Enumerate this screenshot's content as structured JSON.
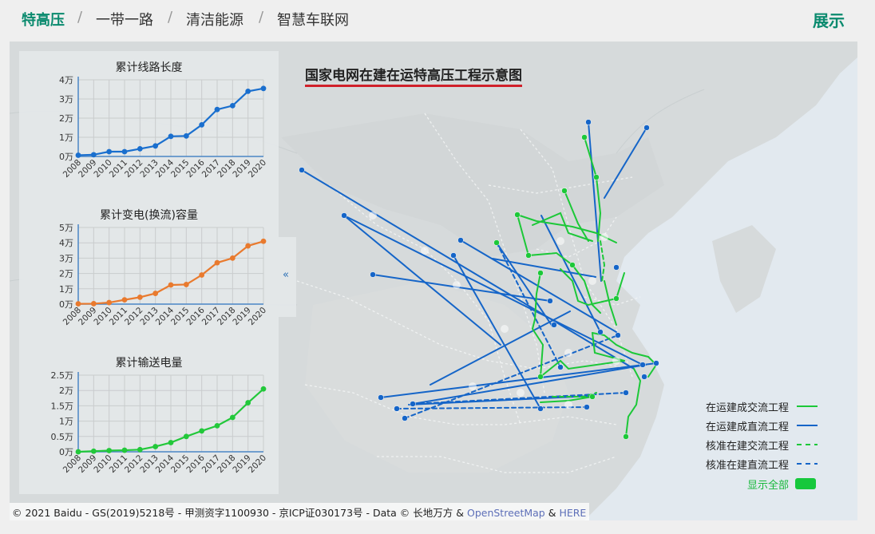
{
  "nav": {
    "tabs": [
      {
        "label": "特高压",
        "active": true
      },
      {
        "label": "一带一路",
        "active": false
      },
      {
        "label": "清洁能源",
        "active": false
      },
      {
        "label": "智慧车联网",
        "active": false
      }
    ],
    "separator": "/",
    "brand": "展示"
  },
  "map": {
    "title": "国家电网在建在运特高压工程示意图",
    "collapse_icon": "«",
    "legend": [
      {
        "label": "在运建成交流工程",
        "color": "#1cc838",
        "dashed": false
      },
      {
        "label": "在运建成直流工程",
        "color": "#1565c8",
        "dashed": false
      },
      {
        "label": "核准在建交流工程",
        "color": "#1cc838",
        "dashed": true
      },
      {
        "label": "核准在建直流工程",
        "color": "#1565c8",
        "dashed": true
      }
    ],
    "show_all_label": "显示全部",
    "copyright": "© 2021 Baidu - GS(2019)5218号 - 甲测资字1100930 - 京ICP证030173号 - Data © 长地万方 & ",
    "osm_link": "OpenStreetMap",
    "and_text": " & ",
    "here_link": "HERE"
  },
  "chart_data": [
    {
      "type": "line",
      "title": "累计线路长度",
      "x": [
        "2008",
        "2009",
        "2010",
        "2011",
        "2012",
        "2013",
        "2014",
        "2015",
        "2016",
        "2017",
        "2018",
        "2019",
        "2020"
      ],
      "values": [
        640,
        900,
        2500,
        2500,
        4000,
        5500,
        10500,
        10700,
        16500,
        24500,
        26500,
        34000,
        35500
      ],
      "yticks": [
        "0万",
        "1万",
        "2万",
        "3万",
        "4万"
      ],
      "ylim": [
        0,
        40000
      ],
      "color": "#1a6fce",
      "grid": true
    },
    {
      "type": "line",
      "title": "累计变电(换流)容量",
      "x": [
        "2008",
        "2009",
        "2010",
        "2011",
        "2012",
        "2013",
        "2014",
        "2015",
        "2016",
        "2017",
        "2018",
        "2019",
        "2020"
      ],
      "values": [
        200,
        300,
        1000,
        2800,
        4500,
        7000,
        12500,
        12800,
        19000,
        27000,
        30000,
        38000,
        41000
      ],
      "yticks": [
        "0万",
        "1万",
        "2万",
        "3万",
        "4万",
        "5万"
      ],
      "ylim": [
        0,
        50000
      ],
      "color": "#e97a2e",
      "grid": true
    },
    {
      "type": "line",
      "title": "累计输送电量",
      "x": [
        "2008",
        "2009",
        "2010",
        "2011",
        "2012",
        "2013",
        "2014",
        "2015",
        "2016",
        "2017",
        "2018",
        "2019",
        "2020"
      ],
      "values": [
        0,
        200,
        400,
        500,
        700,
        1700,
        3000,
        5000,
        6800,
        8500,
        11200,
        16000,
        20500
      ],
      "yticks": [
        "0万",
        "0.5万",
        "1万",
        "1.5万",
        "2万",
        "2.5万"
      ],
      "ylim": [
        0,
        25000
      ],
      "color": "#22c83a",
      "grid": true
    }
  ]
}
